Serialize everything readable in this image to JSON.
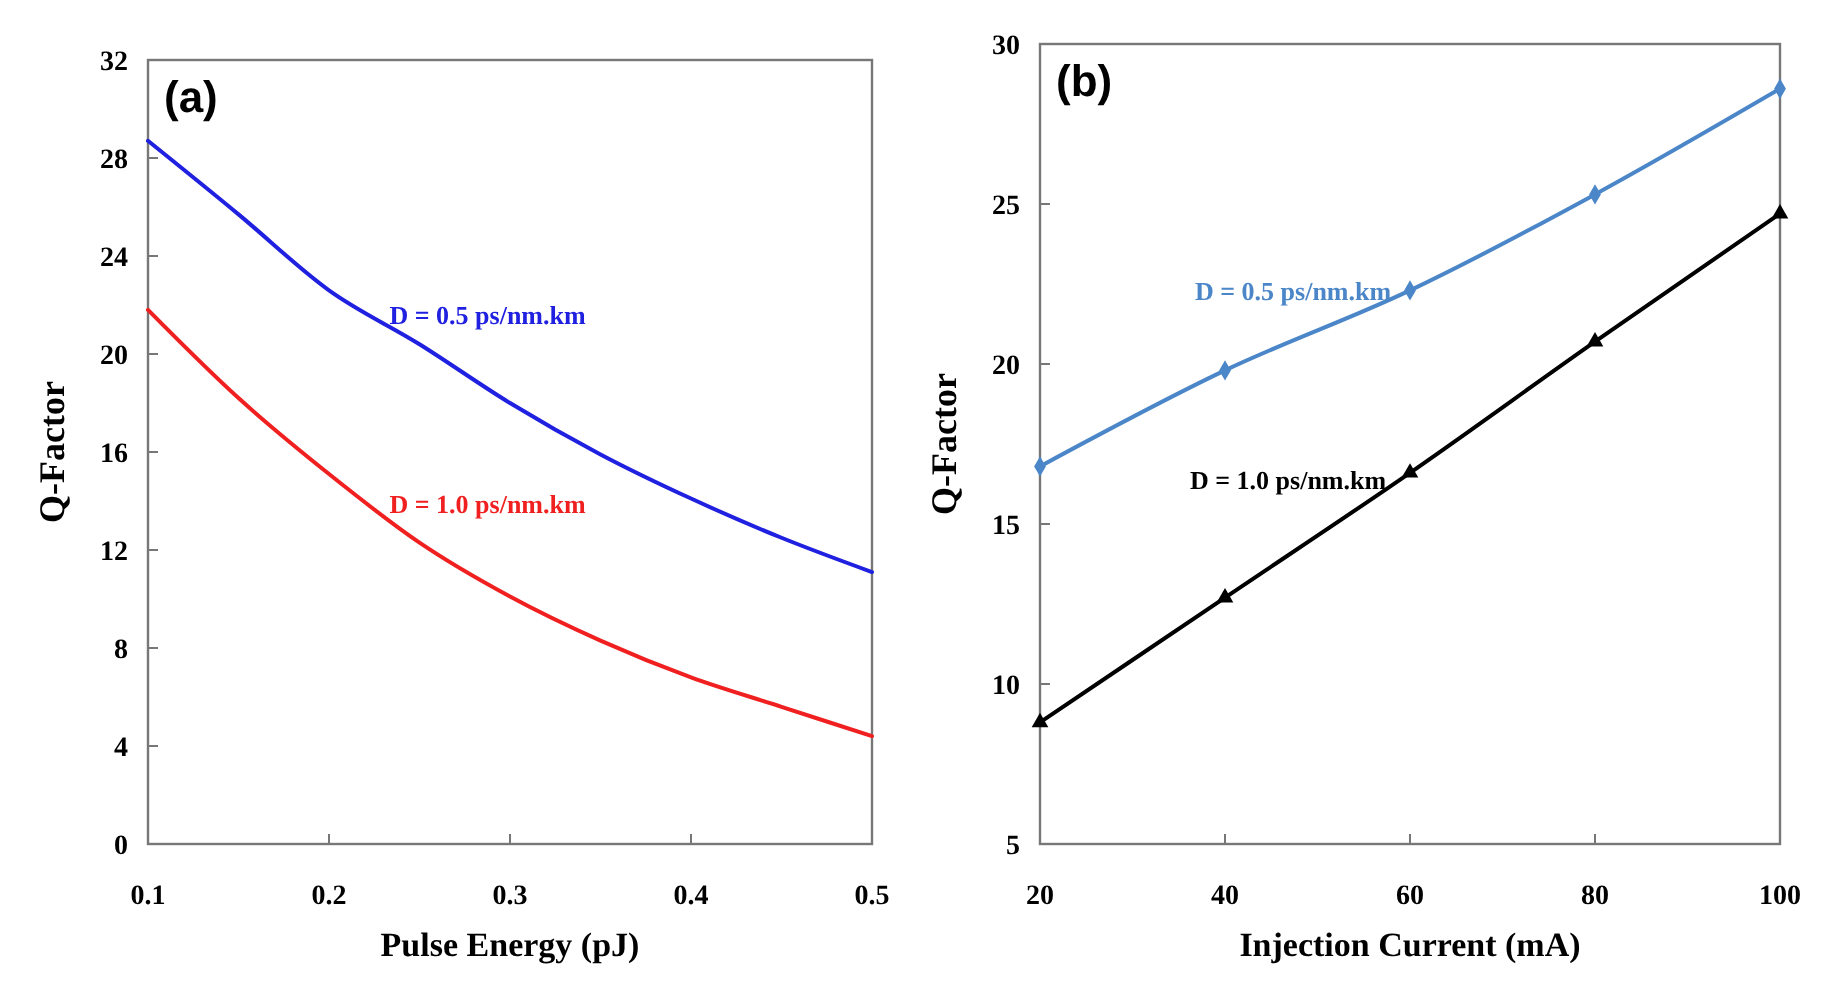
{
  "chart_data": [
    {
      "type": "line",
      "title": "(a)",
      "xlabel": "Pulse Energy (pJ)",
      "ylabel": "Q-Factor",
      "x": [
        0.1,
        0.15,
        0.2,
        0.25,
        0.3,
        0.35,
        0.4,
        0.45,
        0.5
      ],
      "xlim": [
        0.1,
        0.5
      ],
      "xticks": [
        0.1,
        0.2,
        0.3,
        0.4,
        0.5
      ],
      "ylim": [
        0,
        32
      ],
      "yticks": [
        0,
        4,
        8,
        12,
        16,
        20,
        24,
        28,
        32
      ],
      "grid": false,
      "legend": false,
      "marker": "none",
      "line_style": "solid",
      "series": [
        {
          "name": "D = 0.5 ps/nm.km",
          "color": "#2020e0",
          "values": [
            28.7,
            25.7,
            22.6,
            20.4,
            18.0,
            15.9,
            14.1,
            12.5,
            11.1
          ]
        },
        {
          "name": "D = 1.0 ps/nm.km",
          "color": "#f02020",
          "values": [
            21.8,
            18.2,
            15.1,
            12.3,
            10.1,
            8.3,
            6.8,
            5.6,
            4.4
          ]
        }
      ]
    },
    {
      "type": "line",
      "title": "(b)",
      "xlabel": "Injection Current  (mA)",
      "ylabel": "Q-Factor",
      "x": [
        20,
        40,
        60,
        80,
        100
      ],
      "xlim": [
        20,
        100
      ],
      "xticks": [
        20,
        40,
        60,
        80,
        100
      ],
      "ylim": [
        5,
        30
      ],
      "yticks": [
        5,
        10,
        15,
        20,
        25,
        30
      ],
      "grid": false,
      "legend": false,
      "line_style": "solid",
      "series": [
        {
          "name": "D = 0.5 ps/nm.km",
          "color": "#4a86c8",
          "marker": "diamond",
          "values": [
            16.8,
            19.8,
            22.3,
            25.3,
            28.6
          ]
        },
        {
          "name": "D = 1.0 ps/nm.km",
          "color": "#000000",
          "marker": "triangle",
          "values": [
            8.8,
            12.7,
            16.6,
            20.7,
            24.7
          ]
        }
      ]
    }
  ]
}
